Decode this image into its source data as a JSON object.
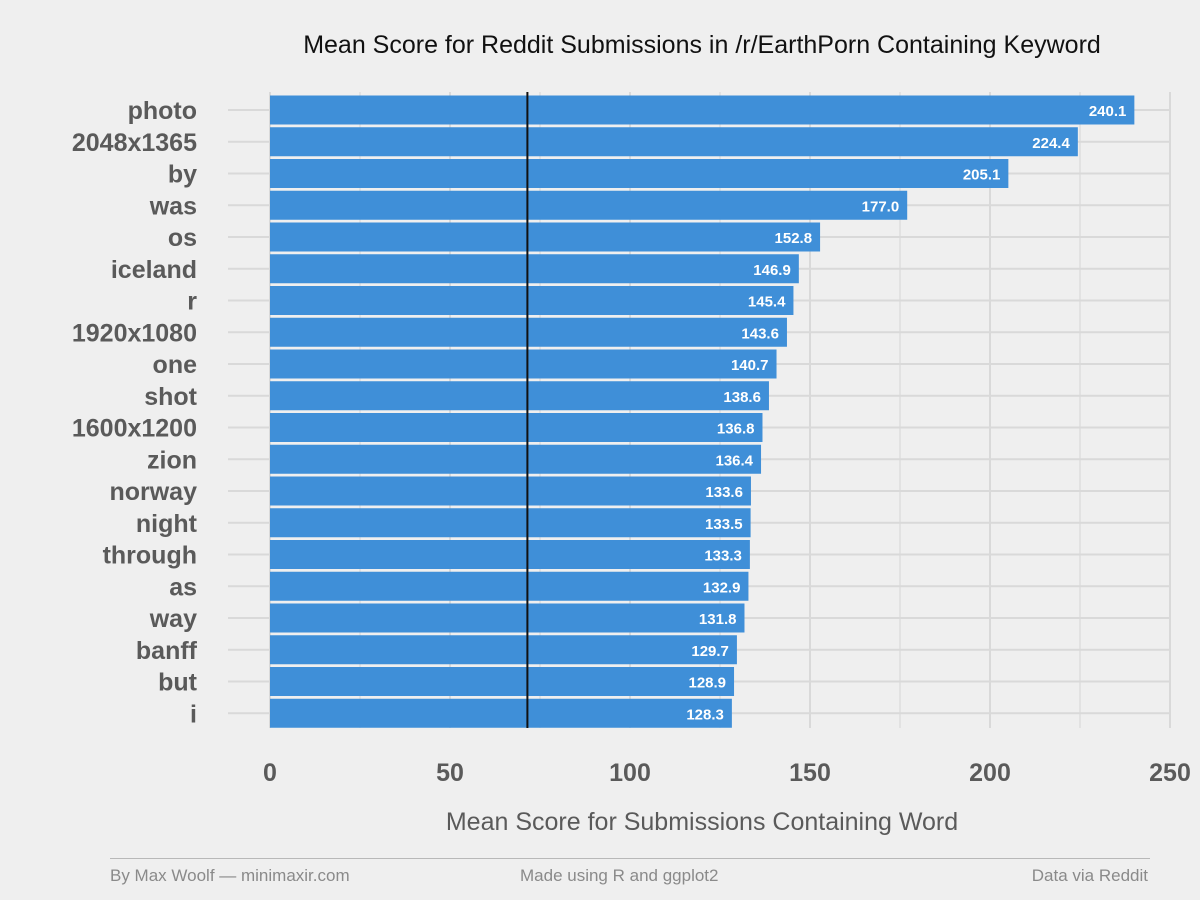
{
  "chart_data": {
    "type": "bar",
    "orientation": "horizontal",
    "title": "Mean Score for Reddit Submissions in /r/EarthPorn Containing Keyword",
    "xlabel": "Mean Score for Submissions Containing Word",
    "ylabel": "",
    "xlim": [
      0,
      250
    ],
    "x_ticks": [
      "0",
      "50",
      "100",
      "150",
      "200",
      "250"
    ],
    "reference_line": 71.5,
    "grid": true,
    "categories": [
      "photo",
      "2048x1365",
      "by",
      "was",
      "os",
      "iceland",
      "r",
      "1920x1080",
      "one",
      "shot",
      "1600x1200",
      "zion",
      "norway",
      "night",
      "through",
      "as",
      "way",
      "banff",
      "but",
      "i"
    ],
    "values": [
      240.1,
      224.4,
      205.1,
      177.0,
      152.8,
      146.9,
      145.4,
      143.6,
      140.7,
      138.6,
      136.8,
      136.4,
      133.6,
      133.5,
      133.3,
      132.9,
      131.8,
      129.7,
      128.9,
      128.3
    ],
    "value_labels": [
      "240.1",
      "224.4",
      "205.1",
      "177.0",
      "152.8",
      "146.9",
      "145.4",
      "143.6",
      "140.7",
      "138.6",
      "136.8",
      "136.4",
      "133.6",
      "133.5",
      "133.3",
      "132.9",
      "131.8",
      "129.7",
      "128.9",
      "128.3"
    ]
  },
  "colors": {
    "background": "#efefef",
    "bar": "#3f8fd8",
    "grid": "#d9d9d9",
    "reference_line": "#111111",
    "label_text": "#5a5a5a",
    "title_text": "#111111",
    "bar_label_text": "#ffffff"
  },
  "footer": {
    "left": "By Max Woolf — minimaxir.com",
    "center": "Made using R and ggplot2",
    "right": "Data via Reddit"
  }
}
